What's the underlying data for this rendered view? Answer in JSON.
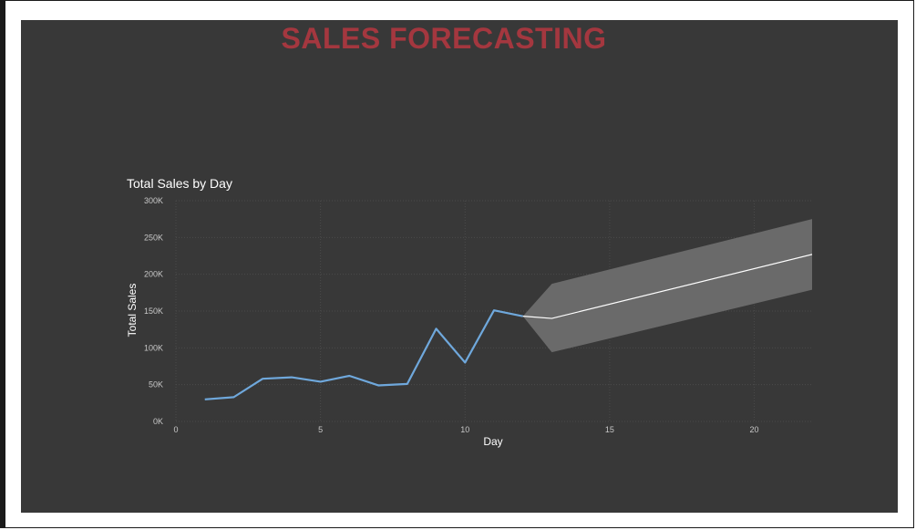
{
  "report": {
    "title": "SALES FORECASTING"
  },
  "colors": {
    "background": "#383838",
    "title": "#a4373f",
    "actual_line": "#6fa8dc",
    "forecast_line": "#ffffff",
    "confidence_band": "#6a6a6a",
    "grid": "#4a4a4a"
  },
  "chart_data": {
    "type": "line",
    "title": "Total Sales by Day",
    "xlabel": "Day",
    "ylabel": "Total Sales",
    "xlim": [
      0,
      22
    ],
    "ylim": [
      0,
      300000
    ],
    "x_ticks": [
      0,
      5,
      10,
      15,
      20
    ],
    "y_ticks": [
      0,
      50000,
      100000,
      150000,
      200000,
      250000,
      300000
    ],
    "y_tick_labels": [
      "0K",
      "50K",
      "100K",
      "150K",
      "200K",
      "250K",
      "300K"
    ],
    "grid": true,
    "series": [
      {
        "kind": "actual",
        "x": [
          1,
          2,
          3,
          4,
          5,
          6,
          7,
          8,
          9,
          10,
          11,
          12
        ],
        "values": [
          30000,
          33000,
          58000,
          60000,
          54000,
          62000,
          49000,
          51000,
          126000,
          80000,
          151000,
          143000
        ]
      },
      {
        "kind": "forecast",
        "x": [
          12,
          13,
          22
        ],
        "values": [
          143000,
          140000,
          227000
        ],
        "upper": [
          143000,
          187000,
          275000
        ],
        "lower": [
          143000,
          94000,
          179000
        ]
      }
    ]
  }
}
